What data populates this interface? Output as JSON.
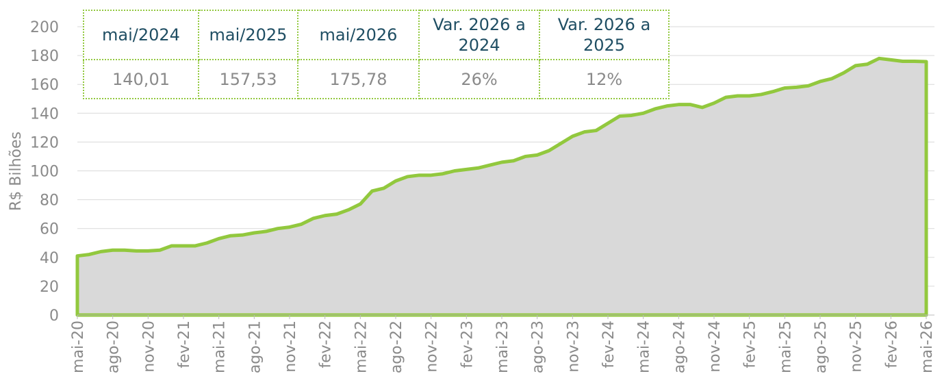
{
  "chart_data": {
    "type": "area",
    "y_label": "R$ Bilhões",
    "categories": [
      "mai-20",
      null,
      null,
      "ago-20",
      null,
      null,
      "nov-20",
      null,
      null,
      "fev-21",
      null,
      null,
      "mai-21",
      null,
      null,
      "ago-21",
      null,
      null,
      "nov-21",
      null,
      null,
      "fev-22",
      null,
      null,
      "mai-22",
      null,
      null,
      "ago-22",
      null,
      null,
      "nov-22",
      null,
      null,
      "fev-23",
      null,
      null,
      "mai-23",
      null,
      null,
      "ago-23",
      null,
      null,
      "nov-23",
      null,
      null,
      "fev-24",
      null,
      null,
      "mai-24",
      null,
      null,
      "ago-24",
      null,
      null,
      "nov-24",
      null,
      null,
      "fev-25",
      null,
      null,
      "mai-25",
      null,
      null,
      "ago-25",
      null,
      null,
      "nov-25",
      null,
      null,
      "fev-26",
      null,
      null,
      "mai-26"
    ],
    "values": [
      41,
      42,
      44,
      45,
      45,
      44.5,
      44.5,
      45,
      48,
      48,
      48,
      50,
      53,
      55,
      55.5,
      57,
      58,
      60,
      61,
      63,
      67,
      69,
      70,
      73,
      77,
      86,
      88,
      93,
      96,
      97,
      97,
      98,
      100,
      101,
      102,
      104,
      106,
      107,
      110,
      111,
      114,
      119,
      124,
      127,
      128,
      133,
      138,
      138.5,
      140,
      143,
      145,
      146,
      146,
      144,
      147,
      151,
      152,
      152,
      153,
      155,
      157.5,
      158,
      159,
      162,
      164,
      168,
      173,
      174,
      178,
      177,
      176,
      176,
      175.8
    ],
    "color": "#92c83e",
    "fill": "#d9d9d9",
    "ylim": [
      0,
      200
    ],
    "yticks": [
      0,
      20,
      40,
      60,
      80,
      100,
      120,
      140,
      160,
      180,
      200
    ],
    "grid": true
  },
  "table": {
    "header": [
      "mai/2024",
      "mai/2025",
      "mai/2026",
      "Var. 2026 a 2024",
      "Var. 2026 a 2025"
    ],
    "row": [
      "140,01",
      "157,53",
      "175,78",
      "26%",
      "12%"
    ]
  }
}
